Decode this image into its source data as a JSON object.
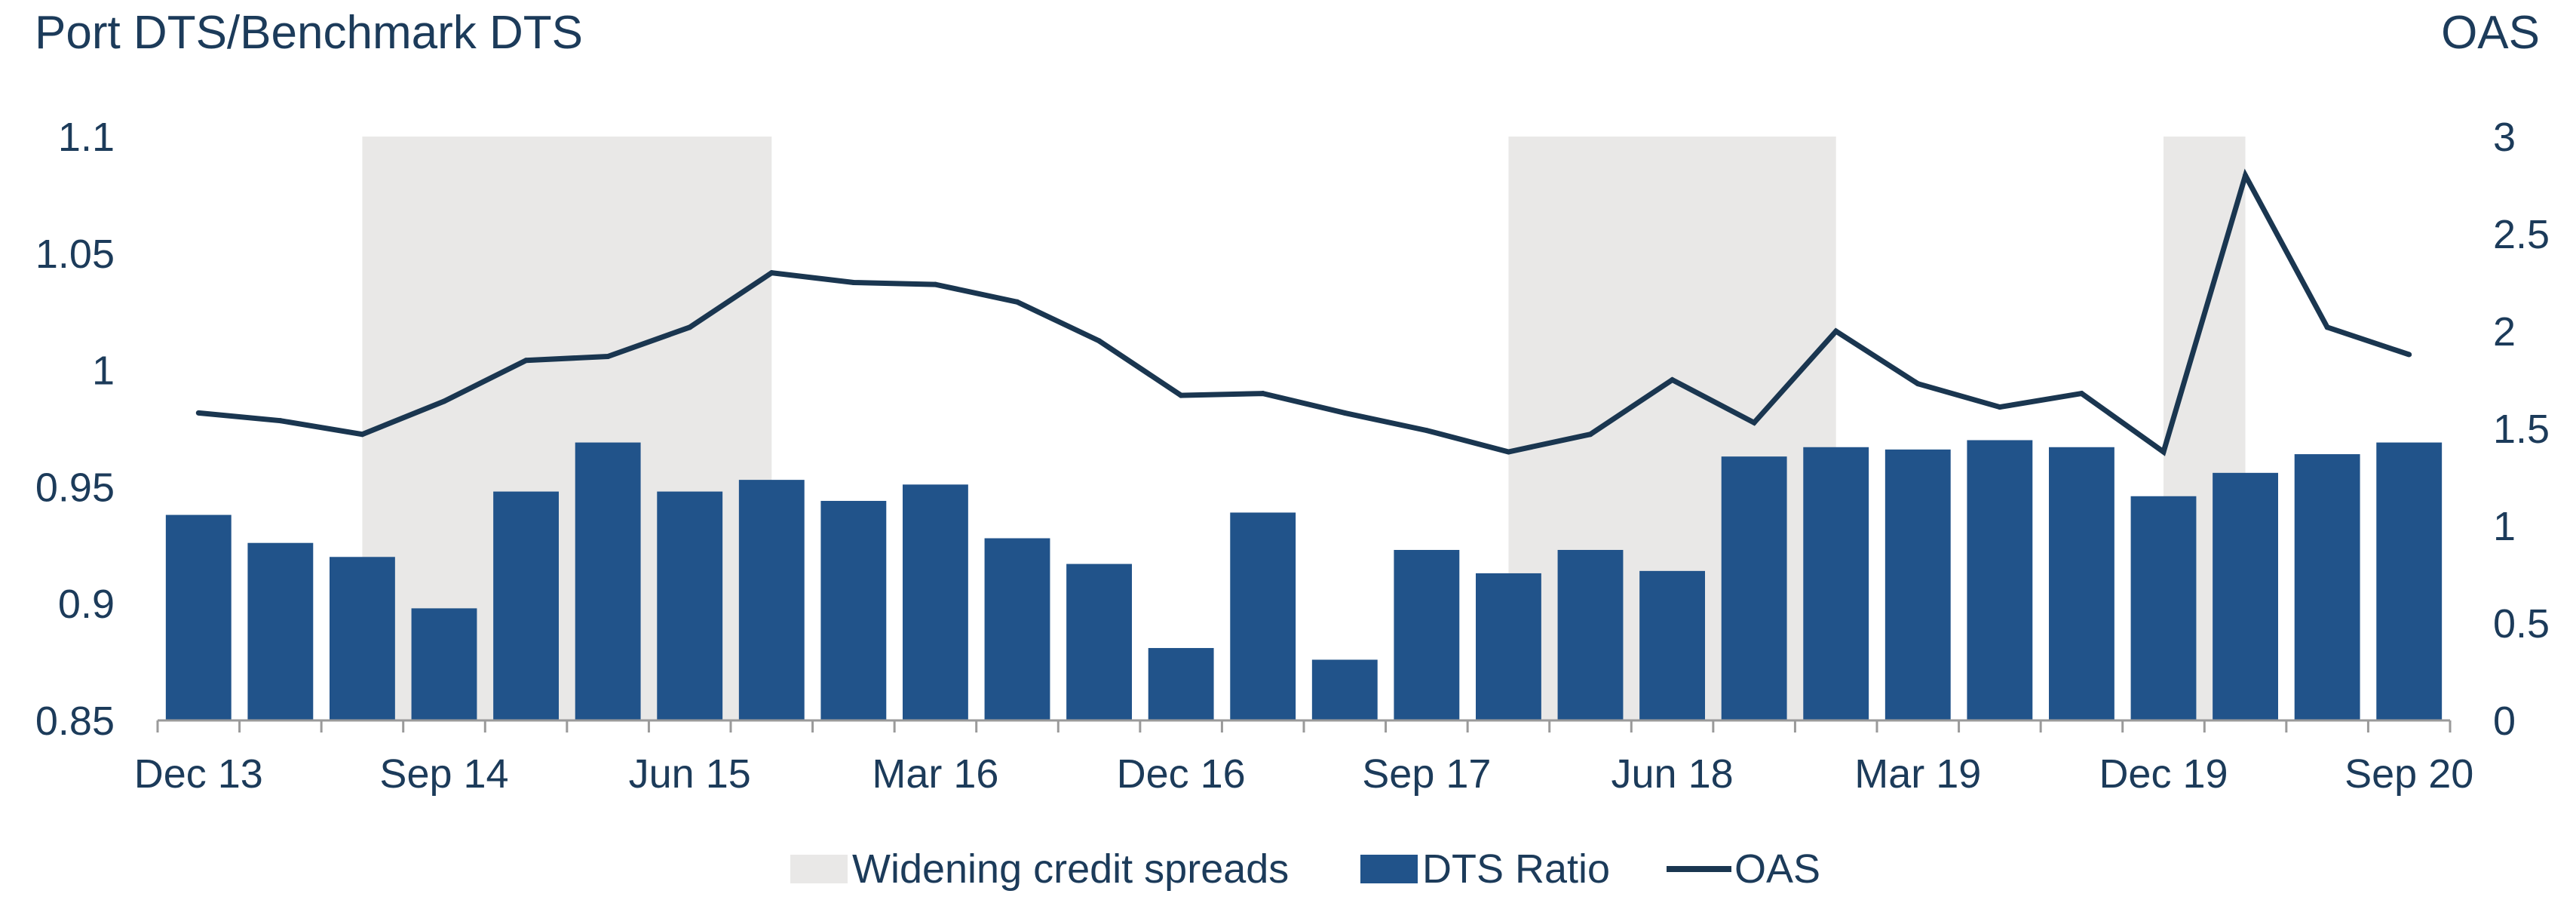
{
  "chart_data": {
    "type": "bar",
    "title_left": "Port DTS/Benchmark DTS",
    "title_right": "OAS",
    "x_tick_labels": [
      "Dec 13",
      "Sep 14",
      "Jun 15",
      "Mar 16",
      "Dec 16",
      "Sep 17",
      "Jun 18",
      "Mar 19",
      "Dec 19",
      "Sep 20"
    ],
    "x_tick_label_positions": [
      0,
      3,
      6,
      9,
      12,
      15,
      18,
      21,
      24,
      27
    ],
    "y_left_ticks": [
      "0.85",
      "0.9",
      "0.95",
      "1",
      "1.05",
      "1.1"
    ],
    "y_left_values": [
      0.85,
      0.9,
      0.95,
      1.0,
      1.05,
      1.1
    ],
    "y_left_range": [
      0.85,
      1.1
    ],
    "y_right_ticks": [
      "0",
      "0.5",
      "1",
      "1.5",
      "2",
      "2.5",
      "3"
    ],
    "y_right_values": [
      0,
      0.5,
      1,
      1.5,
      2,
      2.5,
      3
    ],
    "y_right_range": [
      0,
      3
    ],
    "category_count": 28,
    "series": [
      {
        "name": "DTS Ratio",
        "type": "bar",
        "axis": "left",
        "color": "#21538a",
        "values": [
          0.938,
          0.926,
          0.92,
          0.898,
          0.948,
          0.969,
          0.948,
          0.953,
          0.944,
          0.951,
          0.928,
          0.917,
          0.881,
          0.939,
          0.876,
          0.923,
          0.913,
          0.923,
          0.914,
          0.963,
          0.967,
          0.966,
          0.97,
          0.967,
          0.946,
          0.956,
          0.964,
          0.969
        ]
      },
      {
        "name": "OAS",
        "type": "line",
        "axis": "right",
        "color": "#1a3650",
        "values": [
          1.58,
          1.54,
          1.47,
          1.64,
          1.85,
          1.87,
          2.02,
          2.3,
          2.25,
          2.24,
          2.15,
          1.95,
          1.67,
          1.68,
          1.58,
          1.49,
          1.38,
          1.47,
          1.75,
          1.53,
          2.0,
          1.73,
          1.61,
          1.68,
          1.38,
          2.8,
          2.02,
          1.88
        ]
      }
    ],
    "shaded_regions": {
      "name": "Widening credit spreads",
      "color": "#e9e8e7",
      "ranges": [
        [
          2.5,
          7.5
        ],
        [
          16.5,
          20.5
        ],
        [
          24.5,
          25.5
        ]
      ]
    },
    "legend": {
      "position": "bottom",
      "items": [
        "Widening credit spreads",
        "DTS Ratio",
        "OAS"
      ]
    }
  }
}
